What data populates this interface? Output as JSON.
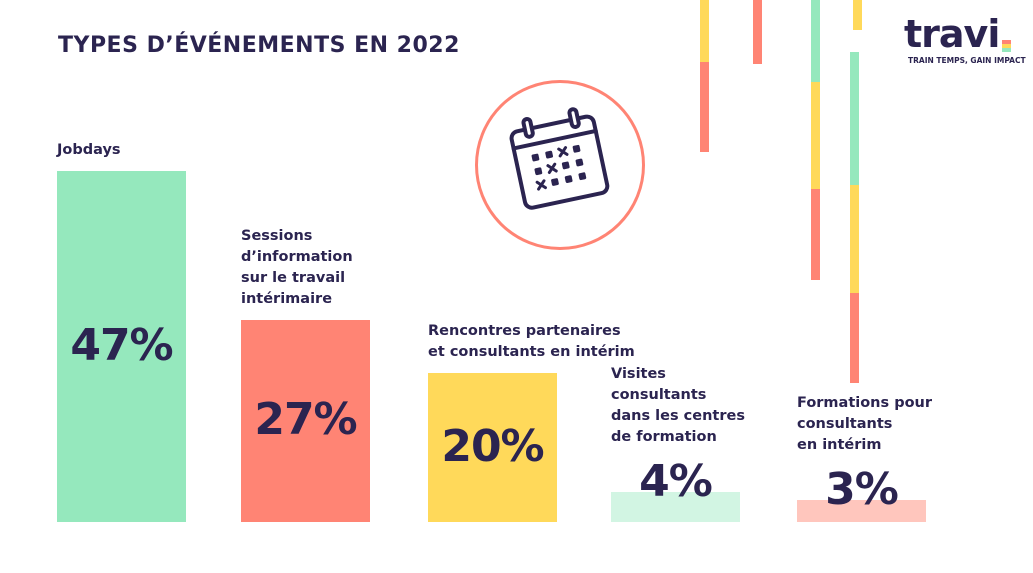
{
  "title": "TYPES D’ÉVÉNEMENTS EN 2022",
  "logo": {
    "word": "travi",
    "tagline": "TRAIN TEMPS, GAIN IMPACT"
  },
  "colors": {
    "navy": "#2b2450",
    "green": "#95e8bd",
    "coral": "#ff8474",
    "yellow": "#ffd95a",
    "pale_green": "#d2f5e3",
    "pale_coral": "#ffc6bd"
  },
  "icons": [
    "calendar-icon"
  ],
  "chart_data": {
    "type": "bar",
    "title": "TYPES D’ÉVÉNEMENTS EN 2022",
    "unit": "%",
    "categories": [
      "Jobdays",
      "Sessions d’information sur le travail intérimaire",
      "Rencontres partenaires et consultants en intérim",
      "Visites consultants dans les centres de formation",
      "Formations pour consultants en intérim"
    ],
    "category_labels": [
      "Jobdays",
      "Sessions\nd’information\nsur le travail\nintérimaire",
      "Rencontres partenaires\net consultants en intérim",
      "Visites\nconsultants\ndans les centres\nde formation",
      "Formations pour\nconsultants\nen intérim"
    ],
    "values": [
      47,
      27,
      20,
      4,
      3
    ],
    "value_labels": [
      "47%",
      "27%",
      "20%",
      "4%",
      "3%"
    ],
    "bar_colors": [
      "#95e8bd",
      "#ff8474",
      "#ffd95a",
      "#d2f5e3",
      "#ffc6bd"
    ],
    "ylim": [
      0,
      47
    ],
    "grid": false,
    "legend": "none"
  }
}
